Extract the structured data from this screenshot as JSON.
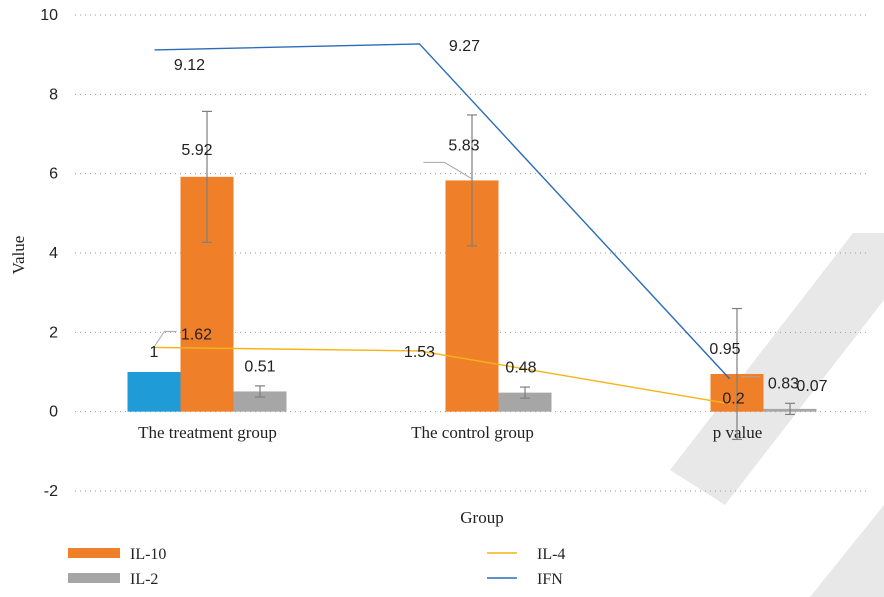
{
  "chart_data": {
    "type": "bar",
    "title": "",
    "xlabel": "Group",
    "ylabel": "Value",
    "ylim": [
      -2,
      10
    ],
    "yticks": [
      "-2",
      "0",
      "2",
      "4",
      "6",
      "8",
      "10"
    ],
    "grid": "dotted horizontal",
    "categories": [
      "The treatment group",
      "The control group",
      "p value"
    ],
    "bar_series": [
      {
        "name": "",
        "color": "#1f9bd7",
        "values": [
          1,
          null,
          null
        ],
        "labels": [
          "1",
          "",
          ""
        ]
      },
      {
        "name": "IL-10",
        "color": "#f07f2a",
        "values": [
          5.92,
          5.83,
          0.95
        ],
        "errors": [
          1.65,
          1.65,
          1.65
        ],
        "labels": [
          "5.92",
          "5.83",
          "0.95"
        ]
      },
      {
        "name": "IL-2",
        "color": "#a6a6a6",
        "values": [
          0.51,
          0.48,
          0.07
        ],
        "errors": [
          0.14,
          0.14,
          0.14
        ],
        "labels": [
          "0.51",
          "0.48",
          "0.07"
        ]
      }
    ],
    "line_series": [
      {
        "name": "IL-4",
        "color": "#f5b414",
        "values": [
          1.62,
          1.53,
          0.2
        ],
        "labels": [
          "1.62",
          "1.53",
          "0.2"
        ]
      },
      {
        "name": "IFN",
        "color": "#2b6cb8",
        "values": [
          9.12,
          9.27,
          0.83
        ],
        "labels": [
          "9.12",
          "9.27",
          "0.83"
        ]
      }
    ],
    "legend": {
      "placement": "bottom",
      "items": [
        {
          "name": "IL-10",
          "kind": "bar",
          "color": "#f07f2a"
        },
        {
          "name": "IL-4",
          "kind": "line",
          "color": "#f5b414"
        },
        {
          "name": "IL-2",
          "kind": "bar",
          "color": "#a6a6a6"
        },
        {
          "name": "IFN",
          "kind": "line",
          "color": "#2b6cb8"
        }
      ]
    },
    "watermark_color": "#e0e0e0"
  }
}
